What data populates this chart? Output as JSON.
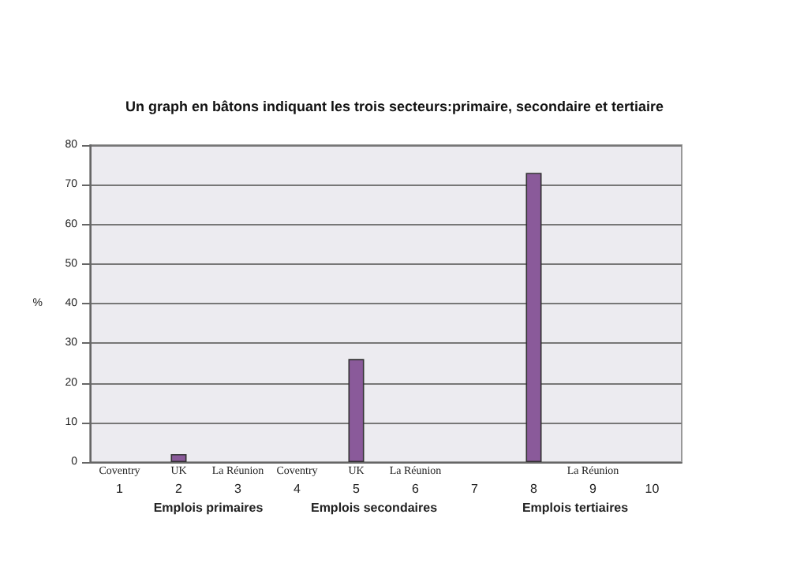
{
  "chart_data": {
    "type": "bar",
    "title": "Un graph en bâtons indiquant les trois secteurs:primaire, secondaire et tertiaire",
    "ylabel": "%",
    "categories": [
      "1",
      "2",
      "3",
      "4",
      "5",
      "6",
      "7",
      "8",
      "9",
      "10"
    ],
    "values": [
      null,
      2,
      null,
      null,
      26,
      null,
      null,
      73,
      null,
      null
    ],
    "color": "#8a5a9a",
    "ylim": [
      0,
      80
    ],
    "yticks": [
      0,
      10,
      20,
      30,
      40,
      50,
      60,
      70,
      80
    ],
    "grid": "y",
    "annotations": [
      "Coventry",
      "UK",
      "La Réunion",
      "Coventry",
      "UK",
      "La Réunion",
      "La Réunion",
      "Emplois primaires",
      "Emplois secondaires",
      "Emplois tertiaires"
    ]
  }
}
